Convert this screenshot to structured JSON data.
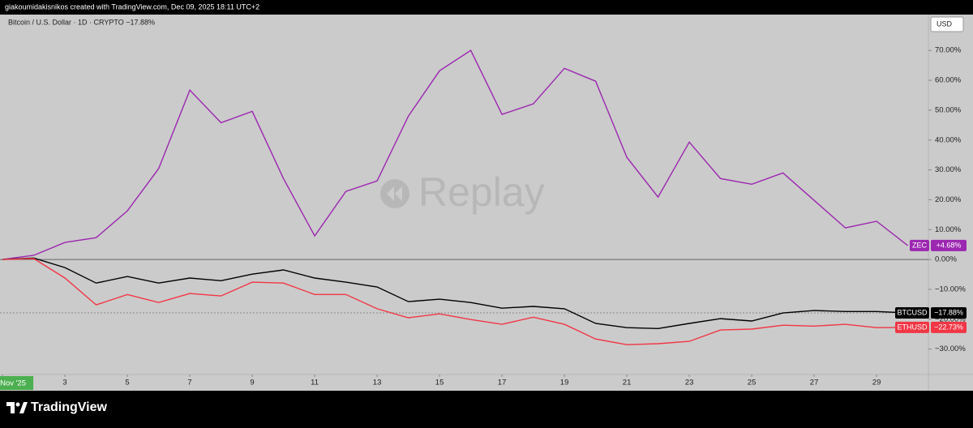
{
  "attribution": "giakoumidakisnikos created with TradingView.com, Dec 09, 2025 18:11 UTC+2",
  "brand": "TradingView",
  "chart_data": {
    "type": "line",
    "title": "Bitcoin / U.S. Dollar · 1D · CRYPTO  −17.88%",
    "watermark": "Replay",
    "currency": "USD",
    "x": [
      1,
      2,
      3,
      4,
      5,
      6,
      7,
      8,
      9,
      10,
      11,
      12,
      13,
      14,
      15,
      16,
      17,
      18,
      19,
      20,
      21,
      22,
      23,
      24,
      25,
      26,
      27,
      28,
      29,
      30
    ],
    "xlim": [
      0.92,
      30.66
    ],
    "xticks": [
      {
        "value": 1,
        "label": "Nov '25"
      },
      3,
      5,
      7,
      9,
      11,
      13,
      15,
      17,
      19,
      21,
      23,
      25,
      27,
      29
    ],
    "ylim": [
      -38.5,
      82
    ],
    "yticks": [
      {
        "value": 70,
        "label": "70.00%"
      },
      {
        "value": 60,
        "label": "60.00%"
      },
      {
        "value": 50,
        "label": "50.00%"
      },
      {
        "value": 40,
        "label": "40.00%"
      },
      {
        "value": 30,
        "label": "30.00%"
      },
      {
        "value": 20,
        "label": "20.00%"
      },
      {
        "value": 10,
        "label": "10.00%"
      },
      {
        "value": 0,
        "label": "0.00%"
      },
      {
        "value": -10,
        "label": "−10.00%"
      },
      {
        "value": -20,
        "label": "−20.00%"
      },
      {
        "value": -30,
        "label": "−30.00%"
      }
    ],
    "zero_line": true,
    "grid": false,
    "series": [
      {
        "name": "ZEC",
        "color": "#9c27b0",
        "values": [
          0,
          1.4,
          5.7,
          7.3,
          16.3,
          30.4,
          56.7,
          45.8,
          49.6,
          27.1,
          7.9,
          22.8,
          26.3,
          48.0,
          63.2,
          70.0,
          48.6,
          52.1,
          64.0,
          59.7,
          34.2,
          20.9,
          39.3,
          27.1,
          25.2,
          29.0,
          19.8,
          10.6,
          12.8,
          4.68
        ],
        "value_labels": [
          null,
          null,
          null,
          null,
          null,
          null,
          null,
          null,
          null,
          null,
          null,
          null,
          null,
          null,
          null,
          null,
          null,
          null,
          null,
          null,
          null,
          null,
          null,
          null,
          null,
          null,
          null,
          null,
          null,
          "+4.68%"
        ]
      },
      {
        "name": "BTCUSD",
        "color": "#000000",
        "price_line": true,
        "values": [
          0,
          0.5,
          -2.7,
          -7.9,
          -5.7,
          -7.9,
          -6.2,
          -7.1,
          -4.9,
          -3.5,
          -6.2,
          -7.6,
          -9.2,
          -14.1,
          -13.3,
          -14.4,
          -16.3,
          -15.7,
          -16.5,
          -21.4,
          -22.8,
          -23.1,
          -21.4,
          -19.8,
          -20.6,
          -17.9,
          -17.1,
          -17.4,
          -17.4,
          -17.88
        ],
        "value_labels": [
          null,
          null,
          null,
          null,
          null,
          null,
          null,
          null,
          null,
          null,
          null,
          null,
          null,
          null,
          null,
          null,
          null,
          null,
          null,
          null,
          null,
          null,
          null,
          null,
          null,
          null,
          null,
          null,
          null,
          "−17.88%"
        ]
      },
      {
        "name": "ETHUSD",
        "color": "#f23645",
        "values": [
          0,
          0.3,
          -6.2,
          -15.2,
          -11.7,
          -14.4,
          -11.4,
          -12.2,
          -7.6,
          -7.9,
          -11.7,
          -11.7,
          -16.5,
          -19.5,
          -18.2,
          -20.1,
          -21.7,
          -19.3,
          -21.7,
          -26.6,
          -28.5,
          -28.2,
          -27.4,
          -23.6,
          -23.3,
          -22.0,
          -22.3,
          -21.7,
          -22.8,
          -22.73
        ],
        "value_labels": [
          null,
          null,
          null,
          null,
          null,
          null,
          null,
          null,
          null,
          null,
          null,
          null,
          null,
          null,
          null,
          null,
          null,
          null,
          null,
          null,
          null,
          null,
          null,
          null,
          null,
          null,
          null,
          null,
          null,
          "−22.73%"
        ]
      }
    ]
  }
}
